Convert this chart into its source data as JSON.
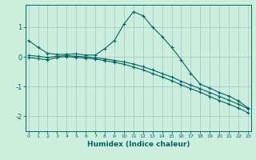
{
  "title": "",
  "xlabel": "Humidex (Indice chaleur)",
  "background_color": "#cceedd",
  "grid_color": "#aacccc",
  "line_color": "#006666",
  "x_ticks": [
    0,
    1,
    2,
    3,
    4,
    5,
    6,
    7,
    8,
    9,
    10,
    11,
    12,
    13,
    14,
    15,
    16,
    17,
    18,
    19,
    20,
    21,
    22,
    23
  ],
  "ylim": [
    -2.5,
    1.75
  ],
  "xlim": [
    -0.3,
    23.3
  ],
  "series1_x": [
    0,
    1,
    2,
    3,
    4,
    5,
    6,
    7,
    8,
    9,
    10,
    11,
    12,
    13,
    14,
    15,
    16,
    17,
    18,
    19,
    20,
    21,
    22,
    23
  ],
  "series1_y": [
    0.55,
    0.32,
    0.12,
    0.08,
    0.09,
    0.1,
    0.06,
    0.06,
    0.28,
    0.55,
    1.1,
    1.52,
    1.38,
    1.0,
    0.68,
    0.32,
    -0.1,
    -0.55,
    -0.92,
    -1.05,
    -1.2,
    -1.32,
    -1.48,
    -1.72
  ],
  "series2_x": [
    0,
    1,
    2,
    3,
    4,
    5,
    6,
    7,
    8,
    9,
    10,
    11,
    12,
    13,
    14,
    15,
    16,
    17,
    18,
    19,
    20,
    21,
    22,
    23
  ],
  "series2_y": [
    0.05,
    0.02,
    -0.02,
    0.02,
    0.04,
    0.02,
    0.0,
    -0.03,
    -0.07,
    -0.12,
    -0.17,
    -0.24,
    -0.33,
    -0.44,
    -0.56,
    -0.68,
    -0.82,
    -0.95,
    -1.07,
    -1.2,
    -1.33,
    -1.46,
    -1.59,
    -1.74
  ],
  "series3_x": [
    0,
    1,
    2,
    3,
    4,
    5,
    6,
    7,
    8,
    9,
    10,
    11,
    12,
    13,
    14,
    15,
    16,
    17,
    18,
    19,
    20,
    21,
    22,
    23
  ],
  "series3_y": [
    -0.02,
    -0.06,
    -0.1,
    -0.02,
    0.01,
    -0.02,
    -0.04,
    -0.07,
    -0.13,
    -0.18,
    -0.25,
    -0.34,
    -0.44,
    -0.56,
    -0.68,
    -0.8,
    -0.94,
    -1.07,
    -1.19,
    -1.33,
    -1.47,
    -1.59,
    -1.72,
    -1.88
  ]
}
